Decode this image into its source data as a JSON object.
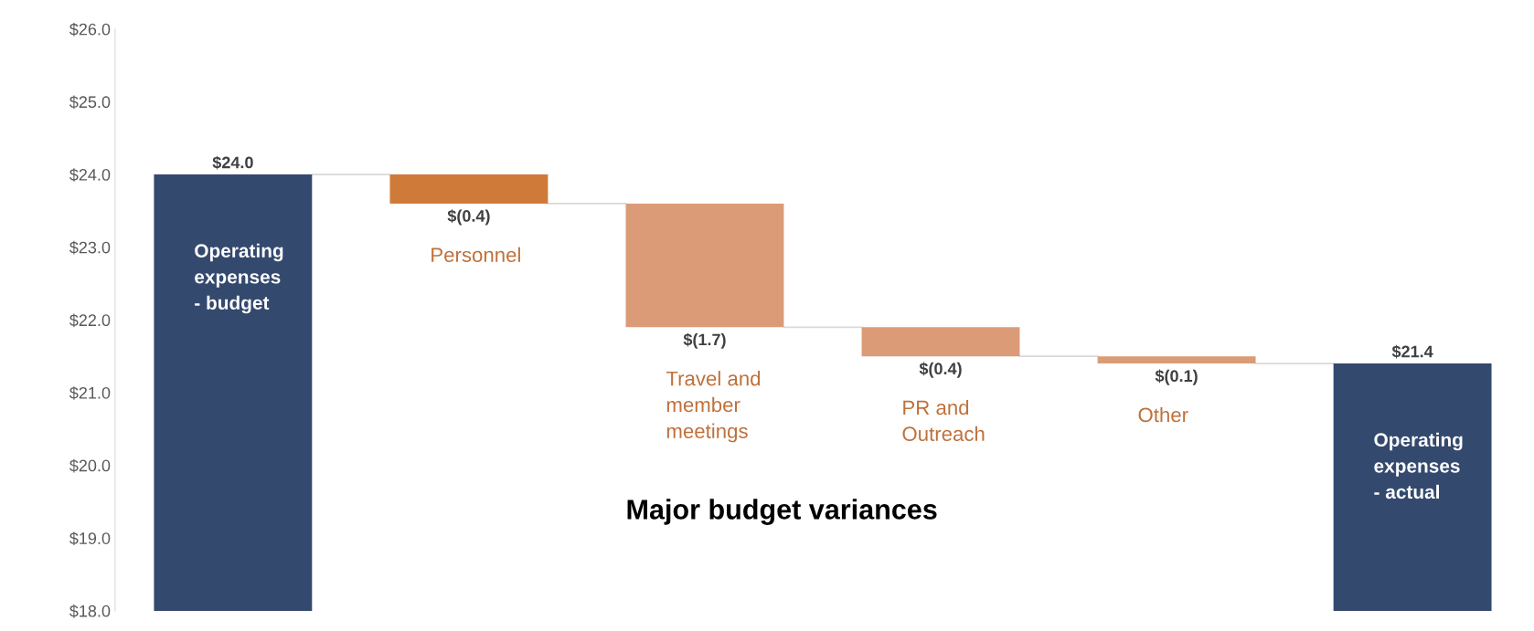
{
  "chart_data": {
    "type": "bar",
    "title": "Major budget variances",
    "categories": [
      "Operating expenses - budget",
      "Personnel",
      "Travel and member meetings",
      "PR and Outreach",
      "Other",
      "Operating expenses - actual"
    ],
    "base": [
      18.0,
      24.0,
      23.6,
      21.9,
      21.5,
      18.0
    ],
    "values": [
      6.0,
      -0.4,
      -1.7,
      -0.4,
      -0.1,
      3.4
    ],
    "value_labels": [
      "$24.0",
      "$(0.4)",
      "$(1.7)",
      "$(0.4)",
      "$(0.1)",
      "$21.4"
    ],
    "colors": [
      "#34496e",
      "#d07a3a",
      "#db9b77",
      "#db9b77",
      "#db9b77",
      "#34496e"
    ],
    "ylim": [
      18.0,
      26.0
    ],
    "yticks": [
      {
        "value": 18,
        "label": "$18.0"
      },
      {
        "value": 19,
        "label": "$19.0"
      },
      {
        "value": 20,
        "label": "$20.0"
      },
      {
        "value": 21,
        "label": "$21.0"
      },
      {
        "value": 22,
        "label": "$22.0"
      },
      {
        "value": 23,
        "label": "$23.0"
      },
      {
        "value": 24,
        "label": "$24.0"
      },
      {
        "value": 25,
        "label": "$25.0"
      },
      {
        "value": 26,
        "label": "$26.0"
      }
    ],
    "grid": false,
    "legend": false,
    "tick_labels": "y"
  }
}
